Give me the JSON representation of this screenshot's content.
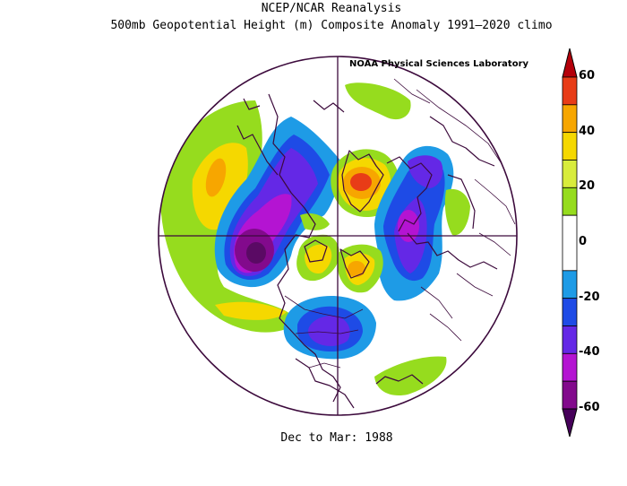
{
  "header": {
    "title_line1": "NCEP/NCAR Reanalysis",
    "title_line2": "500mb Geopotential Height (m) Composite Anomaly 1991–2020 climo",
    "credit": "NOAA Physical Sciences Laboratory"
  },
  "footer": {
    "period": "Dec to Mar: 1988"
  },
  "colorbar": {
    "ticks": [
      "60",
      "40",
      "20",
      "0",
      "-20",
      "-40",
      "-60"
    ],
    "bands": [
      {
        "from": 50,
        "to": 60,
        "color": "#e83c17"
      },
      {
        "from": 40,
        "to": 50,
        "color": "#f7a600"
      },
      {
        "from": 30,
        "to": 40,
        "color": "#f5d800"
      },
      {
        "from": 20,
        "to": 30,
        "color": "#d8ec3c"
      },
      {
        "from": 10,
        "to": 20,
        "color": "#96dc1e"
      },
      {
        "from": -10,
        "to": 10,
        "color": "#ffffff"
      },
      {
        "from": -20,
        "to": -10,
        "color": "#1e9be6"
      },
      {
        "from": -30,
        "to": -20,
        "color": "#1e4be6"
      },
      {
        "from": -40,
        "to": -30,
        "color": "#6428e6"
      },
      {
        "from": -50,
        "to": -40,
        "color": "#b414d2"
      },
      {
        "from": -60,
        "to": -50,
        "color": "#820a8c"
      }
    ],
    "over_color": "#b4000a",
    "under_color": "#46005a"
  },
  "map": {
    "projection": "north polar stereographic",
    "border_color": "#3c0a3c"
  }
}
